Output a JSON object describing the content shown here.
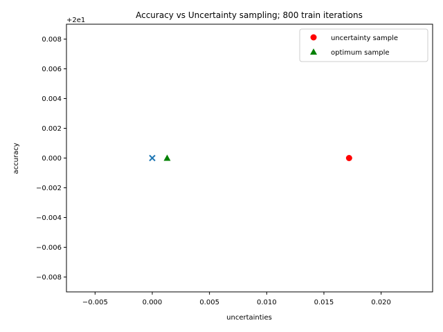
{
  "chart_data": {
    "type": "scatter",
    "title": "Accuracy vs Uncertainty sampling; 800 train iterations",
    "xlabel": "uncertainties",
    "ylabel": "accuracy",
    "y_offset_label": "+2e1",
    "y_offset_value": 20,
    "xlim": [
      -0.0075,
      0.0245
    ],
    "ylim": [
      -0.009,
      0.009
    ],
    "x_ticks": [
      -0.005,
      0.0,
      0.005,
      0.01,
      0.015,
      0.02
    ],
    "x_tick_labels": [
      "−0.005",
      "0.000",
      "0.005",
      "0.010",
      "0.015",
      "0.020"
    ],
    "y_ticks": [
      -0.008,
      -0.006,
      -0.004,
      -0.002,
      0.0,
      0.002,
      0.004,
      0.006,
      0.008
    ],
    "y_tick_labels": [
      "−0.008",
      "−0.006",
      "−0.004",
      "−0.002",
      "0.000",
      "0.002",
      "0.004",
      "0.006",
      "0.008"
    ],
    "grid": false,
    "legend_position": "top-right",
    "series": [
      {
        "name": "",
        "marker": "x",
        "color": "#1f77b4",
        "points": [
          {
            "x": 0.0,
            "y": 0.0
          }
        ]
      },
      {
        "name": "uncertainty sample",
        "marker": "circle",
        "color": "#ff0000",
        "points": [
          {
            "x": 0.0172,
            "y": 0.0
          }
        ]
      },
      {
        "name": "optimum sample",
        "marker": "triangle",
        "color": "#008000",
        "points": [
          {
            "x": 0.0013,
            "y": 0.0
          }
        ]
      }
    ]
  }
}
